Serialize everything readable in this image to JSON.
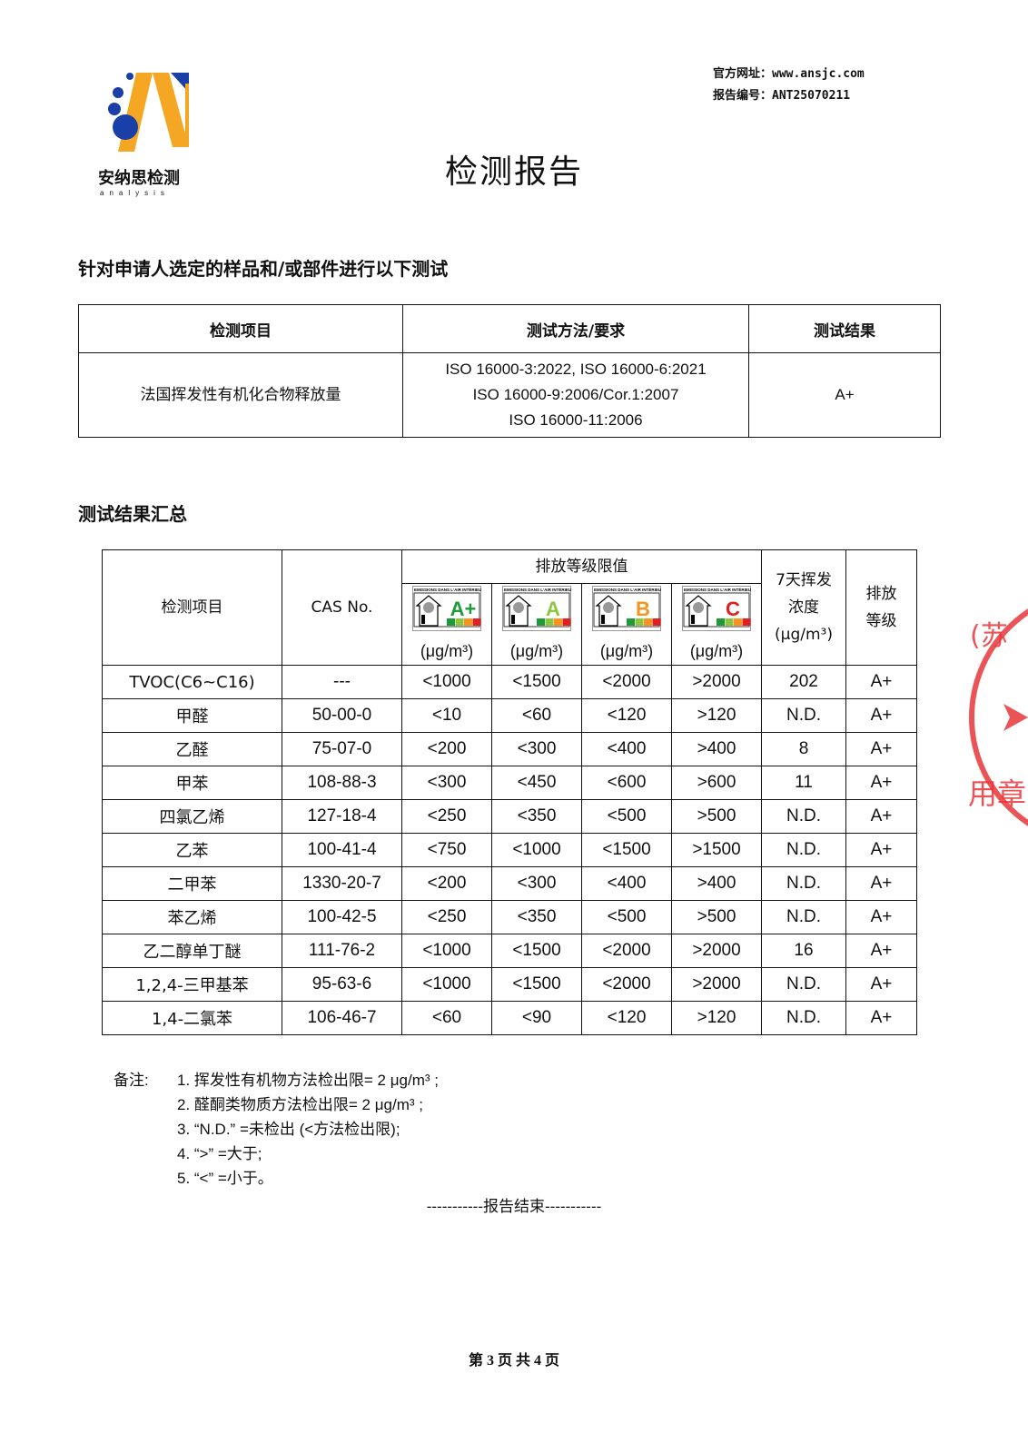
{
  "logo": {
    "name": "安纳思检测",
    "sub": "analysis",
    "colors": {
      "orange": "#f5a623",
      "blue": "#1a3fa8"
    }
  },
  "header": {
    "website": "官方网址：www.ansjc.com",
    "report_no": "报告编号：ANT25070211"
  },
  "title": "检测报告",
  "section1": {
    "heading": "针对申请人选定的样品和/或部件进行以下测试",
    "columns": [
      "检测项目",
      "测试方法/要求",
      "测试结果"
    ],
    "row": {
      "item": "法国挥发性有机化合物释放量",
      "methods": [
        "ISO 16000-3:2022, ISO 16000-6:2021",
        "ISO 16000-9:2006/Cor.1:2007",
        "ISO 16000-11:2006"
      ],
      "result": "A+"
    }
  },
  "section2": {
    "heading": "测试结果汇总",
    "columns": {
      "item": "检测项目",
      "cas": "CAS No.",
      "limits": "排放等级限值",
      "conc": [
        "7天挥发",
        "浓度",
        "(μg/m³)"
      ],
      "grade": [
        "排放",
        "等级"
      ]
    },
    "label_header": "EMISSIONS DANS L'AIR INTÉRIEUR",
    "classes": [
      {
        "grade": "A+",
        "color": "#1e9a3a",
        "unit": "(μg/m³)"
      },
      {
        "grade": "A",
        "color": "#8cc63f",
        "unit": "(μg/m³)"
      },
      {
        "grade": "B",
        "color": "#f7941d",
        "unit": "(μg/m³)"
      },
      {
        "grade": "C",
        "color": "#e02020",
        "unit": "(μg/m³)"
      }
    ],
    "scale": [
      "A+",
      "A",
      "B",
      "C"
    ],
    "rows": [
      [
        "TVOC(C6~C16)",
        "---",
        "<1000",
        "<1500",
        "<2000",
        ">2000",
        "202",
        "A+"
      ],
      [
        "甲醛",
        "50-00-0",
        "<10",
        "<60",
        "<120",
        ">120",
        "N.D.",
        "A+"
      ],
      [
        "乙醛",
        "75-07-0",
        "<200",
        "<300",
        "<400",
        ">400",
        "8",
        "A+"
      ],
      [
        "甲苯",
        "108-88-3",
        "<300",
        "<450",
        "<600",
        ">600",
        "11",
        "A+"
      ],
      [
        "四氯乙烯",
        "127-18-4",
        "<250",
        "<350",
        "<500",
        ">500",
        "N.D.",
        "A+"
      ],
      [
        "乙苯",
        "100-41-4",
        "<750",
        "<1000",
        "<1500",
        ">1500",
        "N.D.",
        "A+"
      ],
      [
        "二甲苯",
        "1330-20-7",
        "<200",
        "<300",
        "<400",
        ">400",
        "N.D.",
        "A+"
      ],
      [
        "苯乙烯",
        "100-42-5",
        "<250",
        "<350",
        "<500",
        ">500",
        "N.D.",
        "A+"
      ],
      [
        "乙二醇单丁醚",
        "111-76-2",
        "<1000",
        "<1500",
        "<2000",
        ">2000",
        "16",
        "A+"
      ],
      [
        "1,2,4-三甲基苯",
        "95-63-6",
        "<1000",
        "<1500",
        "<2000",
        ">2000",
        "N.D.",
        "A+"
      ],
      [
        "1,4-二氯苯",
        "106-46-7",
        "<60",
        "<90",
        "<120",
        ">120",
        "N.D.",
        "A+"
      ]
    ]
  },
  "notes": {
    "label": "备注:",
    "items": [
      "1. 挥发性有机物方法检出限= 2 μg/m³ ;",
      "2. 醛酮类物质方法检出限= 2 μg/m³ ;",
      "3. “N.D.” =未检出 (<方法检出限);",
      "4. “>” =大于;",
      "5. “<” =小于。"
    ]
  },
  "end": "-----------报告结束-----------",
  "footer": "第 3 页 共 4 页",
  "stamp": {
    "text": "(苏州…专用章",
    "color": "#e8363a"
  }
}
